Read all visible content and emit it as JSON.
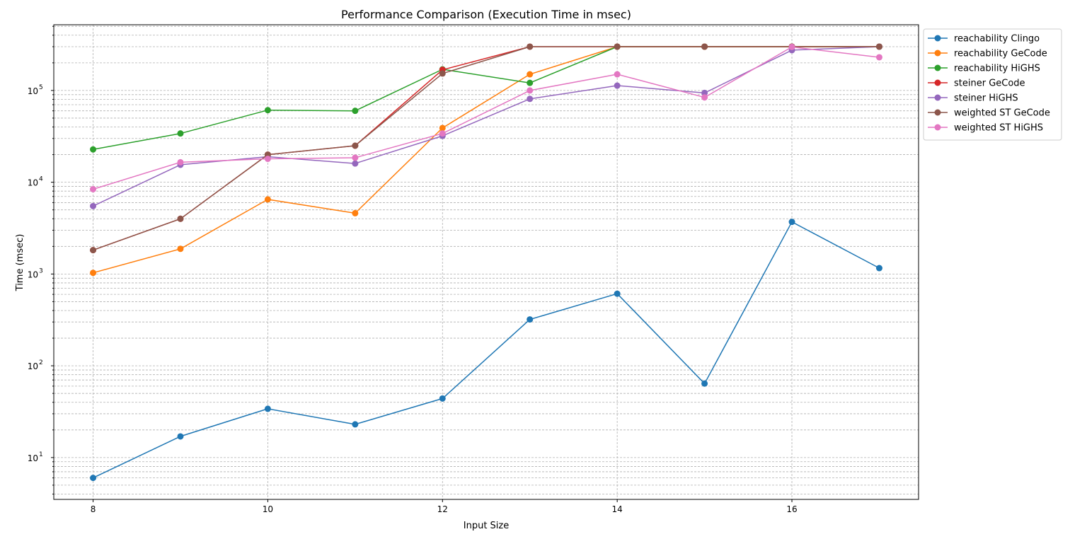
{
  "chart_data": {
    "type": "line",
    "title": "Performance Comparison (Execution Time in msec)",
    "xlabel": "Input Size",
    "ylabel": "Time (msec)",
    "yscale": "log",
    "xlim": [
      7.55,
      17.45
    ],
    "ylim": [
      3.5,
      520000
    ],
    "x_ticks": [
      8,
      10,
      12,
      14,
      16
    ],
    "y_ticks": [
      {
        "value": 10,
        "base": "10",
        "exp": "1"
      },
      {
        "value": 100,
        "base": "10",
        "exp": "2"
      },
      {
        "value": 1000,
        "base": "10",
        "exp": "3"
      },
      {
        "value": 10000,
        "base": "10",
        "exp": "4"
      },
      {
        "value": 100000,
        "base": "10",
        "exp": "5"
      }
    ],
    "grid": true,
    "legend_position": "outside upper right",
    "x": [
      8,
      9,
      10,
      11,
      12,
      13,
      14,
      15,
      16,
      17
    ],
    "series": [
      {
        "name": "reachability Clingo",
        "color": "#1f77b4",
        "values": [
          6,
          17,
          34,
          23,
          44,
          320,
          610,
          64,
          3700,
          1160
        ]
      },
      {
        "name": "reachability GeCode",
        "color": "#ff7f0e",
        "values": [
          1030,
          1880,
          6500,
          4600,
          39000,
          150000,
          300000,
          300000,
          300000,
          300000
        ]
      },
      {
        "name": "reachability HiGHS",
        "color": "#2ca02c",
        "values": [
          22800,
          34000,
          61000,
          60000,
          170000,
          121000,
          300000,
          300000,
          300000,
          300000
        ]
      },
      {
        "name": "steiner GeCode",
        "color": "#d62728",
        "values": [
          1820,
          4000,
          20000,
          25000,
          168000,
          300000,
          300000,
          300000,
          300000,
          300000
        ]
      },
      {
        "name": "steiner HiGHS",
        "color": "#9467bd",
        "values": [
          5500,
          15500,
          19000,
          16000,
          32000,
          81000,
          113000,
          94000,
          275000,
          300000
        ]
      },
      {
        "name": "weighted ST GeCode",
        "color": "#8c564b",
        "values": [
          1820,
          4000,
          20000,
          25000,
          153000,
          300000,
          300000,
          300000,
          300000,
          300000
        ]
      },
      {
        "name": "weighted ST HiGHS",
        "color": "#e377c2",
        "values": [
          8400,
          16500,
          18000,
          18500,
          34000,
          100000,
          150000,
          84000,
          298000,
          230000
        ]
      }
    ]
  }
}
